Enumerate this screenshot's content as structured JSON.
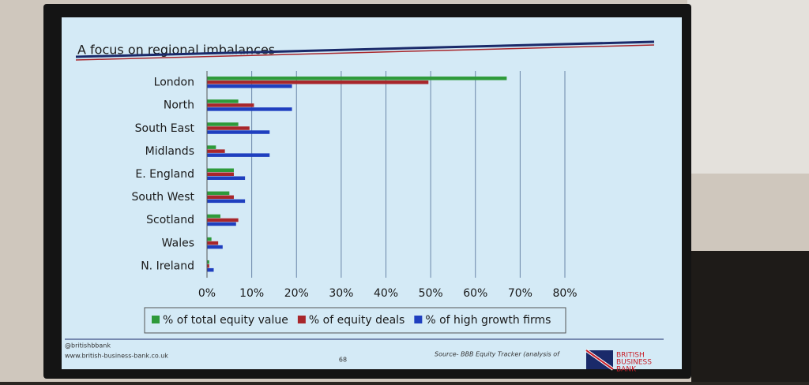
{
  "chart_data": {
    "type": "hbar",
    "title": "A focus on regional imbalances",
    "categories": [
      "London",
      "North",
      "South East",
      "Midlands",
      "E. England",
      "South West",
      "Scotland",
      "Wales",
      "N. Ireland"
    ],
    "series": [
      {
        "name": "% of total equity value",
        "color": "#2e9a3a",
        "values": [
          67,
          7,
          7,
          2,
          6,
          5,
          3,
          1,
          0.5
        ]
      },
      {
        "name": "% of equity deals",
        "color": "#a8262b",
        "values": [
          49.5,
          10.5,
          9.5,
          4,
          6,
          6,
          7,
          2.5,
          0.5
        ]
      },
      {
        "name": "% of high growth firms",
        "color": "#1f3fbf",
        "values": [
          19,
          19,
          14,
          14,
          8.5,
          8.5,
          6.5,
          3.5,
          1.5
        ]
      }
    ],
    "xlim": [
      0,
      80
    ],
    "xticks": [
      {
        "value": 0,
        "label": "0%"
      },
      {
        "value": 10,
        "label": "10%"
      },
      {
        "value": 20,
        "label": "20%"
      },
      {
        "value": 30,
        "label": "30%"
      },
      {
        "value": 40,
        "label": "40%"
      },
      {
        "value": 50,
        "label": "50%"
      },
      {
        "value": 60,
        "label": "60%"
      },
      {
        "value": 70,
        "label": "70%"
      },
      {
        "value": 80,
        "label": "80%"
      }
    ],
    "grid": true,
    "legend": "bottom"
  },
  "footer": {
    "handle": "@britishbbank",
    "website": "www.british-business-bank.co.uk",
    "page": "68",
    "source": "Source- BBB Equity Tracker (analysis of",
    "logo": [
      "BRITISH",
      "BUSINESS",
      "BANK"
    ]
  }
}
